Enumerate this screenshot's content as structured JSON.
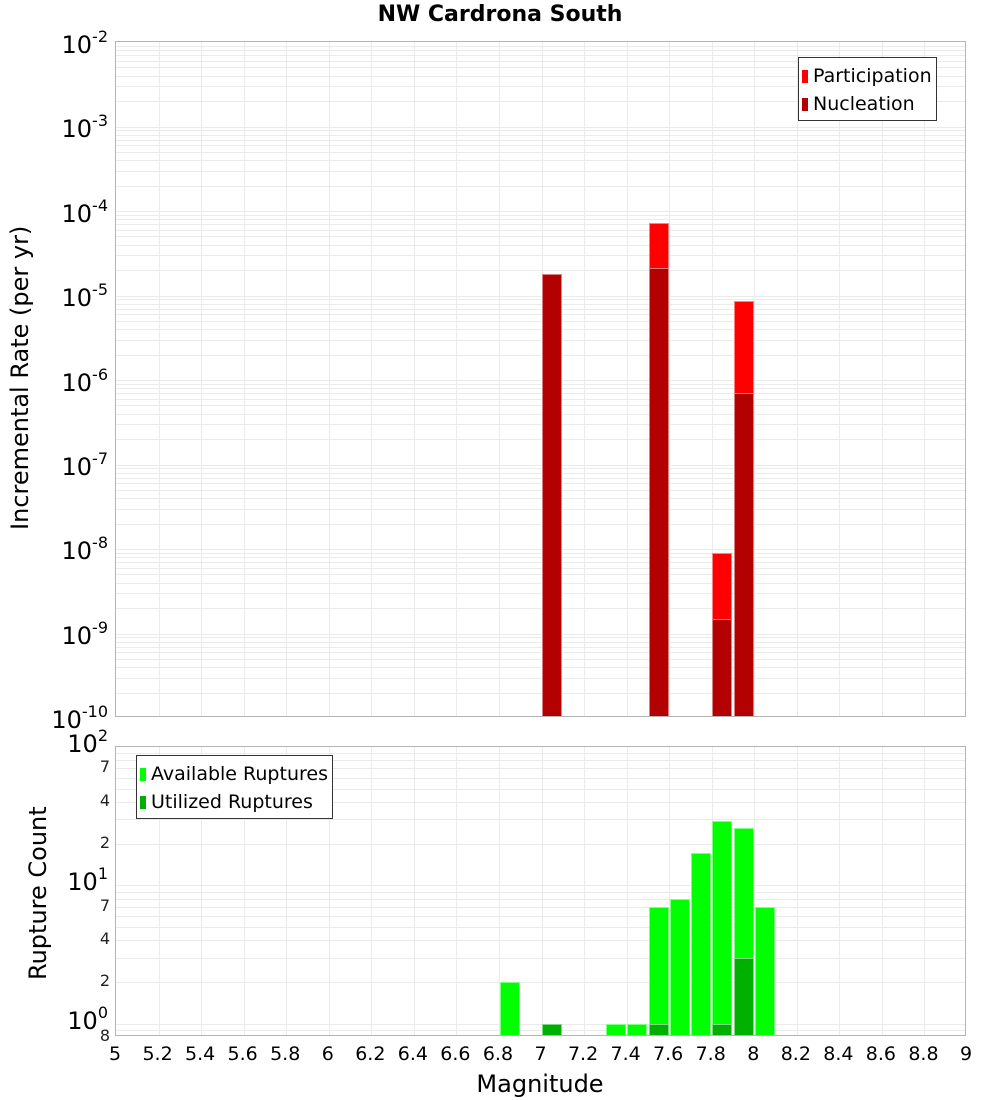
{
  "title": "NW Cardrona South",
  "colors": {
    "participation": "#ff0000",
    "nucleation": "#b30000",
    "available": "#00ff00",
    "utilized": "#00b000",
    "grid": "#ebebeb",
    "border": "#b4b4b4"
  },
  "top_chart": {
    "ylabel": "Incremental Rate (per yr)",
    "yticks": [
      {
        "base": "10",
        "exp": "-2"
      },
      {
        "base": "10",
        "exp": "-3"
      },
      {
        "base": "10",
        "exp": "-4"
      },
      {
        "base": "10",
        "exp": "-5"
      },
      {
        "base": "10",
        "exp": "-6"
      },
      {
        "base": "10",
        "exp": "-7"
      },
      {
        "base": "10",
        "exp": "-8"
      },
      {
        "base": "10",
        "exp": "-9"
      },
      {
        "base": "10",
        "exp": "-10"
      }
    ],
    "legend": [
      "Participation",
      "Nucleation"
    ]
  },
  "bottom_chart": {
    "ylabel": "Rupture Count",
    "yticks_major": [
      {
        "base": "10",
        "exp": "2"
      },
      {
        "base": "10",
        "exp": "1"
      },
      {
        "base": "10",
        "exp": "0"
      }
    ],
    "yticks_minor": [
      "7",
      "4",
      "2",
      "7",
      "4",
      "2",
      "8"
    ],
    "legend": [
      "Available Ruptures",
      "Utilized Ruptures"
    ]
  },
  "xaxis": {
    "label": "Magnitude",
    "ticks": [
      "5",
      "5.2",
      "5.4",
      "5.6",
      "5.8",
      "6",
      "6.2",
      "6.4",
      "6.6",
      "6.8",
      "7",
      "7.2",
      "7.4",
      "7.6",
      "7.8",
      "8",
      "8.2",
      "8.4",
      "8.6",
      "8.8",
      "9"
    ]
  },
  "chart_data": [
    {
      "type": "bar",
      "title": "NW Cardrona South",
      "xlabel": "Magnitude",
      "ylabel": "Incremental Rate (per yr)",
      "yscale": "log",
      "xlim": [
        5,
        9
      ],
      "ylim": [
        1e-10,
        0.01
      ],
      "grid": true,
      "legend_position": "top-right",
      "categories": [
        7.05,
        7.55,
        7.85,
        7.95
      ],
      "series": [
        {
          "name": "Participation",
          "color": "#ff0000",
          "values": [
            1.8e-05,
            7.2e-05,
            8.9e-09,
            8.5e-06
          ]
        },
        {
          "name": "Nucleation",
          "color": "#b30000",
          "values": [
            1.8e-05,
            2.1e-05,
            1.5e-09,
            7e-07
          ]
        }
      ]
    },
    {
      "type": "bar",
      "title": "",
      "xlabel": "Magnitude",
      "ylabel": "Rupture Count",
      "yscale": "log",
      "xlim": [
        5,
        9
      ],
      "ylim": [
        0.8,
        100
      ],
      "grid": true,
      "legend_position": "top-left",
      "categories": [
        6.85,
        7.05,
        7.35,
        7.45,
        7.55,
        7.65,
        7.75,
        7.85,
        7.95,
        8.05
      ],
      "series": [
        {
          "name": "Available Ruptures",
          "color": "#00ff00",
          "values": [
            2,
            0,
            1,
            1,
            7,
            8,
            17,
            29,
            26,
            7
          ]
        },
        {
          "name": "Utilized Ruptures",
          "color": "#00b000",
          "values": [
            0,
            1,
            0,
            0,
            1,
            0,
            0,
            1,
            3,
            0
          ]
        }
      ]
    }
  ]
}
